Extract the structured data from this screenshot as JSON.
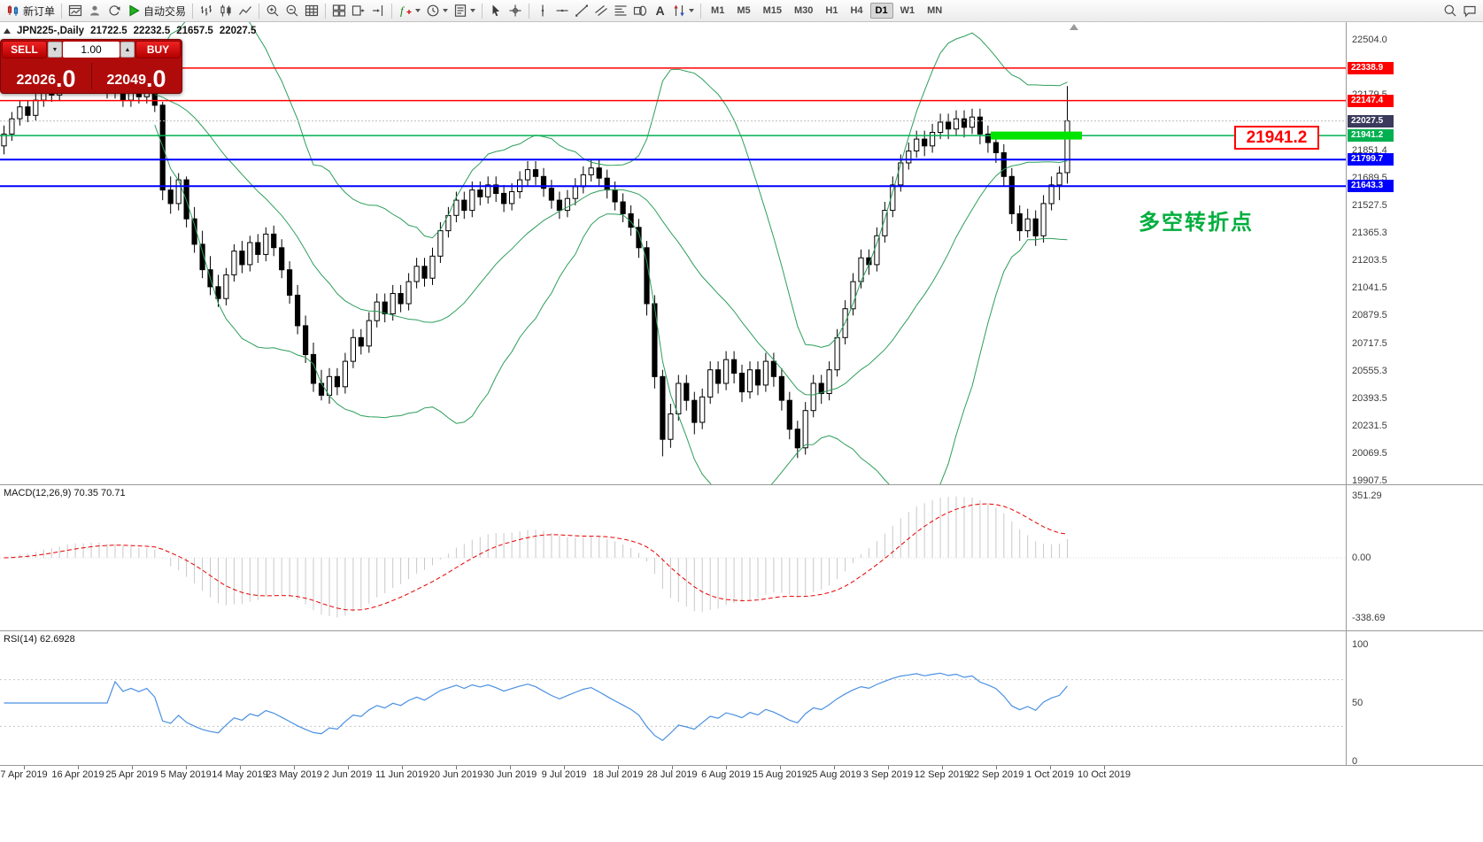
{
  "toolbar": {
    "buttons": [
      {
        "name": "new-order-button",
        "icon": "new-order",
        "label": "新订单"
      },
      {
        "sep": true
      },
      {
        "name": "new-chart-button",
        "icon": "new-chart"
      },
      {
        "name": "profiles-button",
        "icon": "profiles"
      },
      {
        "name": "refresh-button",
        "icon": "refresh"
      },
      {
        "name": "autotrading-button",
        "icon": "play",
        "label": "自动交易"
      },
      {
        "sep": true
      },
      {
        "name": "bar-chart-button",
        "icon": "bars"
      },
      {
        "name": "candlestick-chart-button",
        "icon": "candles"
      },
      {
        "name": "line-chart-button",
        "icon": "line-chart"
      },
      {
        "sep": true
      },
      {
        "name": "zoom-in-button",
        "icon": "zoom-in"
      },
      {
        "name": "zoom-out-button",
        "icon": "zoom-out"
      },
      {
        "name": "grid-button",
        "icon": "grid"
      },
      {
        "sep": true
      },
      {
        "name": "tile-windows-button",
        "icon": "tile"
      },
      {
        "name": "auto-scroll-button",
        "icon": "auto-scroll"
      },
      {
        "name": "chart-shift-button",
        "icon": "chart-shift"
      },
      {
        "sep": true
      },
      {
        "name": "indicators-button",
        "icon": "indicators",
        "dropdown": true
      },
      {
        "name": "periods-button",
        "icon": "periods",
        "dropdown": true
      },
      {
        "name": "templates-button",
        "icon": "templates",
        "dropdown": true
      },
      {
        "sep": true
      },
      {
        "name": "cursor-button",
        "icon": "cursor"
      },
      {
        "name": "crosshair-button",
        "icon": "crosshair"
      },
      {
        "sep": true
      },
      {
        "name": "vertical-line-button",
        "icon": "vline"
      },
      {
        "name": "horizontal-line-button",
        "icon": "hline"
      },
      {
        "name": "trendline-button",
        "icon": "trendline"
      },
      {
        "name": "channel-button",
        "icon": "channel"
      },
      {
        "name": "fibonacci-button",
        "icon": "fibonacci"
      },
      {
        "name": "shapes-button",
        "icon": "shapes"
      },
      {
        "name": "text-button",
        "icon": "text"
      },
      {
        "name": "arrows-button",
        "icon": "arrows",
        "dropdown": true
      },
      {
        "sep": true
      }
    ],
    "timeframes": [
      "M1",
      "M5",
      "M15",
      "M30",
      "H1",
      "H4",
      "D1",
      "W1",
      "MN"
    ],
    "selected_timeframe": "D1",
    "right_buttons": [
      {
        "name": "search-button",
        "icon": "search"
      },
      {
        "name": "help-button",
        "icon": "chat"
      }
    ]
  },
  "chart_header": {
    "symbol": "JPN225-,Daily",
    "open": "21722.5",
    "high": "22232.5",
    "low": "21657.5",
    "close": "22027.5"
  },
  "trade_panel": {
    "sell_label": "SELL",
    "buy_label": "BUY",
    "volume": "1.00",
    "sell_price_big": "22026",
    "sell_price_pips": ".0",
    "buy_price_big": "22049",
    "buy_price_pips": ".0"
  },
  "annotation": {
    "text": "多空转折点",
    "color": "#00AE3E"
  },
  "callout": {
    "text": "21941.2",
    "color": "#FF0000"
  },
  "levels": [
    {
      "price": 22338.9,
      "color": "#ff0000",
      "width": 1.5,
      "type": "resistance"
    },
    {
      "price": 22147.4,
      "color": "#ff0000",
      "width": 1.5,
      "type": "resistance"
    },
    {
      "price": 21941.2,
      "color": "#00b050",
      "width": 1.5,
      "type": "pivot"
    },
    {
      "price": 21799.7,
      "color": "#0000ff",
      "width": 2,
      "type": "support"
    },
    {
      "price": 21643.3,
      "color": "#0000ff",
      "width": 2,
      "type": "support"
    }
  ],
  "current": {
    "price": 22027.5,
    "tag_color": "#3a3a5c"
  },
  "highlight_segment": {
    "price": 21941.2,
    "from": 124.8,
    "to": 136.3,
    "color": "#00e400"
  },
  "price_axis_ticks": [
    22504.0,
    22341.5,
    22179.5,
    22013.5,
    21851.4,
    21689.5,
    21527.5,
    21365.3,
    21203.5,
    21041.5,
    20879.5,
    20717.5,
    20555.3,
    20393.5,
    20231.5,
    20069.5,
    19907.5
  ],
  "macd": {
    "label": "MACD(12,26,9) 70.35 70.71",
    "axis_max": "351.29",
    "axis_zero": "0.00",
    "axis_min": "-338.69"
  },
  "rsi": {
    "label": "RSI(14) 62.6928",
    "axis": [
      100,
      50,
      0
    ],
    "levels": [
      70,
      30
    ]
  },
  "date_axis": [
    "7 Apr 2019",
    "16 Apr 2019",
    "25 Apr 2019",
    "5 May 2019",
    "14 May 2019",
    "23 May 2019",
    "2 Jun 2019",
    "11 Jun 2019",
    "20 Jun 2019",
    "30 Jun 2019",
    "9 Jul 2019",
    "18 Jul 2019",
    "28 Jul 2019",
    "6 Aug 2019",
    "15 Aug 2019",
    "25 Aug 2019",
    "3 Sep 2019",
    "12 Sep 2019",
    "22 Sep 2019",
    "1 Oct 2019",
    "10 Oct 2019"
  ],
  "chart_data": {
    "type": "candlestick",
    "symbol": "JPN225",
    "timeframe": "Daily",
    "ylim": [
      19885,
      22615
    ],
    "indicators": [
      "Bollinger Bands(20,2)",
      "MACD(12,26,9)",
      "RSI(14)"
    ],
    "candles": [
      [
        21880,
        22000,
        21830,
        21950
      ],
      [
        21950,
        22080,
        21910,
        22040
      ],
      [
        22040,
        22150,
        22000,
        22110
      ],
      [
        22110,
        22150,
        22020,
        22060
      ],
      [
        22060,
        22190,
        22030,
        22150
      ],
      [
        22150,
        22260,
        22110,
        22220
      ],
      [
        22220,
        22260,
        22140,
        22180
      ],
      [
        22180,
        22290,
        22150,
        22250
      ],
      [
        22250,
        22350,
        22210,
        22310
      ],
      [
        22310,
        22350,
        22230,
        22270
      ],
      [
        22270,
        22320,
        22190,
        22230
      ],
      [
        22230,
        22340,
        22200,
        22300
      ],
      [
        22300,
        22340,
        22220,
        22260
      ],
      [
        22260,
        22300,
        22160,
        22200
      ],
      [
        22200,
        22300,
        22160,
        22260
      ],
      [
        22260,
        22300,
        22110,
        22150
      ],
      [
        22150,
        22250,
        22110,
        22210
      ],
      [
        22210,
        22250,
        22130,
        22170
      ],
      [
        22170,
        22270,
        22130,
        22230
      ],
      [
        22230,
        22270,
        22080,
        22120
      ],
      [
        22120,
        22140,
        21560,
        21620
      ],
      [
        21620,
        21700,
        21480,
        21540
      ],
      [
        21540,
        21720,
        21500,
        21680
      ],
      [
        21680,
        21700,
        21400,
        21450
      ],
      [
        21450,
        21520,
        21250,
        21300
      ],
      [
        21300,
        21380,
        21100,
        21150
      ],
      [
        21150,
        21230,
        21000,
        21050
      ],
      [
        21050,
        21120,
        20930,
        20980
      ],
      [
        20980,
        21160,
        20940,
        21120
      ],
      [
        21120,
        21300,
        21080,
        21260
      ],
      [
        21260,
        21320,
        21130,
        21180
      ],
      [
        21180,
        21350,
        21140,
        21310
      ],
      [
        21310,
        21360,
        21190,
        21240
      ],
      [
        21240,
        21400,
        21200,
        21360
      ],
      [
        21360,
        21410,
        21230,
        21280
      ],
      [
        21280,
        21330,
        21100,
        21150
      ],
      [
        21150,
        21200,
        20950,
        21000
      ],
      [
        21000,
        21060,
        20770,
        20820
      ],
      [
        20820,
        20880,
        20600,
        20650
      ],
      [
        20650,
        20720,
        20430,
        20480
      ],
      [
        20480,
        20560,
        20380,
        20410
      ],
      [
        20410,
        20570,
        20360,
        20520
      ],
      [
        20520,
        20570,
        20410,
        20460
      ],
      [
        20460,
        20660,
        20420,
        20610
      ],
      [
        20610,
        20800,
        20570,
        20750
      ],
      [
        20750,
        20800,
        20650,
        20700
      ],
      [
        20700,
        20900,
        20660,
        20850
      ],
      [
        20850,
        21010,
        20810,
        20960
      ],
      [
        20960,
        21010,
        20840,
        20890
      ],
      [
        20890,
        21060,
        20850,
        21010
      ],
      [
        21010,
        21060,
        20900,
        20950
      ],
      [
        20950,
        21130,
        20910,
        21080
      ],
      [
        21080,
        21220,
        21040,
        21170
      ],
      [
        21170,
        21220,
        21050,
        21100
      ],
      [
        21100,
        21280,
        21060,
        21230
      ],
      [
        21230,
        21430,
        21190,
        21380
      ],
      [
        21380,
        21520,
        21340,
        21470
      ],
      [
        21470,
        21610,
        21430,
        21560
      ],
      [
        21560,
        21610,
        21450,
        21500
      ],
      [
        21500,
        21670,
        21460,
        21620
      ],
      [
        21620,
        21670,
        21530,
        21580
      ],
      [
        21580,
        21700,
        21540,
        21650
      ],
      [
        21650,
        21700,
        21550,
        21600
      ],
      [
        21600,
        21650,
        21490,
        21540
      ],
      [
        21540,
        21660,
        21500,
        21610
      ],
      [
        21610,
        21730,
        21570,
        21680
      ],
      [
        21680,
        21790,
        21640,
        21740
      ],
      [
        21740,
        21790,
        21650,
        21700
      ],
      [
        21700,
        21750,
        21580,
        21630
      ],
      [
        21630,
        21680,
        21510,
        21560
      ],
      [
        21560,
        21610,
        21450,
        21500
      ],
      [
        21500,
        21620,
        21460,
        21570
      ],
      [
        21570,
        21690,
        21530,
        21640
      ],
      [
        21640,
        21760,
        21600,
        21710
      ],
      [
        21710,
        21800,
        21670,
        21750
      ],
      [
        21750,
        21800,
        21640,
        21690
      ],
      [
        21690,
        21740,
        21570,
        21620
      ],
      [
        21620,
        21670,
        21500,
        21550
      ],
      [
        21550,
        21600,
        21430,
        21480
      ],
      [
        21480,
        21530,
        21350,
        21400
      ],
      [
        21400,
        21450,
        21220,
        21280
      ],
      [
        21280,
        21320,
        20880,
        20950
      ],
      [
        20950,
        21000,
        20450,
        20520
      ],
      [
        20520,
        20560,
        20050,
        20150
      ],
      [
        20150,
        20360,
        20100,
        20300
      ],
      [
        20300,
        20530,
        20260,
        20480
      ],
      [
        20480,
        20530,
        20320,
        20380
      ],
      [
        20380,
        20430,
        20180,
        20250
      ],
      [
        20250,
        20450,
        20210,
        20400
      ],
      [
        20400,
        20610,
        20360,
        20560
      ],
      [
        20560,
        20610,
        20420,
        20480
      ],
      [
        20480,
        20670,
        20440,
        20620
      ],
      [
        20620,
        20670,
        20480,
        20540
      ],
      [
        20540,
        20590,
        20370,
        20430
      ],
      [
        20430,
        20610,
        20390,
        20560
      ],
      [
        20560,
        20610,
        20410,
        20470
      ],
      [
        20470,
        20660,
        20430,
        20610
      ],
      [
        20610,
        20660,
        20460,
        20520
      ],
      [
        20520,
        20570,
        20320,
        20380
      ],
      [
        20380,
        20430,
        20150,
        20210
      ],
      [
        20210,
        20260,
        20040,
        20100
      ],
      [
        20100,
        20370,
        20060,
        20320
      ],
      [
        20320,
        20530,
        20280,
        20480
      ],
      [
        20480,
        20530,
        20360,
        20420
      ],
      [
        20420,
        20610,
        20380,
        20560
      ],
      [
        20560,
        20800,
        20520,
        20750
      ],
      [
        20750,
        20970,
        20710,
        20920
      ],
      [
        20920,
        21130,
        20880,
        21080
      ],
      [
        21080,
        21270,
        21040,
        21220
      ],
      [
        21220,
        21270,
        21120,
        21180
      ],
      [
        21180,
        21400,
        21140,
        21350
      ],
      [
        21350,
        21550,
        21310,
        21500
      ],
      [
        21500,
        21700,
        21460,
        21650
      ],
      [
        21650,
        21830,
        21610,
        21780
      ],
      [
        21780,
        21900,
        21740,
        21850
      ],
      [
        21850,
        21970,
        21810,
        21920
      ],
      [
        21920,
        21970,
        21820,
        21880
      ],
      [
        21880,
        22010,
        21840,
        21960
      ],
      [
        21960,
        22070,
        21920,
        22020
      ],
      [
        22020,
        22070,
        21920,
        21980
      ],
      [
        21980,
        22090,
        21940,
        22040
      ],
      [
        22040,
        22090,
        21930,
        21990
      ],
      [
        21990,
        22100,
        21950,
        22050
      ],
      [
        22050,
        22100,
        21890,
        21950
      ],
      [
        21950,
        22000,
        21840,
        21900
      ],
      [
        21900,
        21950,
        21780,
        21840
      ],
      [
        21840,
        21890,
        21640,
        21700
      ],
      [
        21700,
        21750,
        21420,
        21480
      ],
      [
        21480,
        21530,
        21320,
        21380
      ],
      [
        21380,
        21510,
        21340,
        21450
      ],
      [
        21450,
        21500,
        21290,
        21350
      ],
      [
        21350,
        21590,
        21310,
        21540
      ],
      [
        21540,
        21700,
        21500,
        21650
      ],
      [
        21650,
        21760,
        21560,
        21720
      ],
      [
        21722.5,
        22232.5,
        21657.5,
        22027.5
      ]
    ]
  }
}
